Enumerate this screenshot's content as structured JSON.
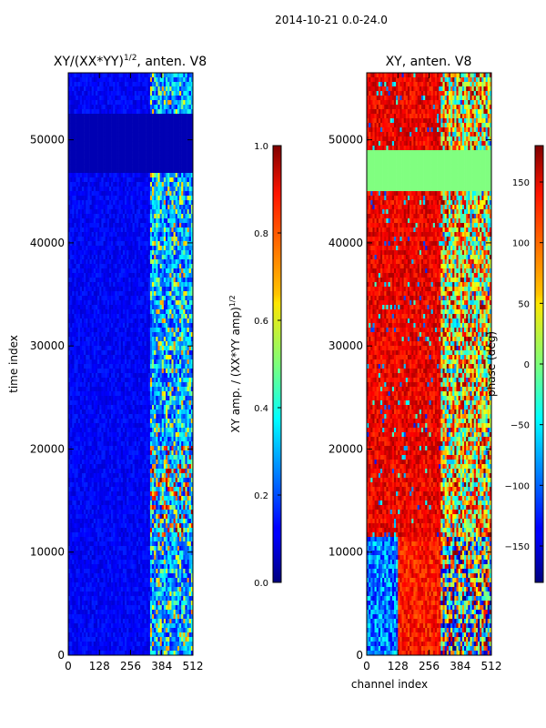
{
  "chart_data": {
    "suptitle": "2014-10-21 0.0-24.0",
    "figure_xlabel": "channel index",
    "panels": [
      {
        "type": "heatmap",
        "title_main": "XY/(XX*YY)",
        "title_sup": "1/2",
        "title_suffix": ", anten. V8",
        "ylabel": "time index",
        "xlim": [
          0,
          512
        ],
        "ylim": [
          0,
          56500
        ],
        "xticks": [
          "0",
          "128",
          "256",
          "384",
          "512"
        ],
        "yticks": [
          "0",
          "10000",
          "20000",
          "30000",
          "40000",
          "50000"
        ],
        "colormap": "jet",
        "colorbar": {
          "range": [
            0.0,
            1.0
          ],
          "ticks": [
            "0.0",
            "0.2",
            "0.4",
            "0.6",
            "0.8",
            "1.0"
          ],
          "label_main": "XY amp. / (XX*YY amp)",
          "label_sup": "1/2"
        }
      },
      {
        "type": "heatmap",
        "title": "XY, anten. V8",
        "xlim": [
          0,
          512
        ],
        "ylim": [
          0,
          56500
        ],
        "xticks": [
          "0",
          "128",
          "256",
          "384",
          "512"
        ],
        "yticks": [
          "0",
          "10000",
          "20000",
          "30000",
          "40000",
          "50000"
        ],
        "colormap": "jet",
        "colorbar": {
          "range": [
            -180,
            180
          ],
          "ticks": [
            "−150",
            "−100",
            "−50",
            "0",
            "50",
            "100",
            "150"
          ],
          "label": "phase (deg)"
        }
      }
    ]
  }
}
